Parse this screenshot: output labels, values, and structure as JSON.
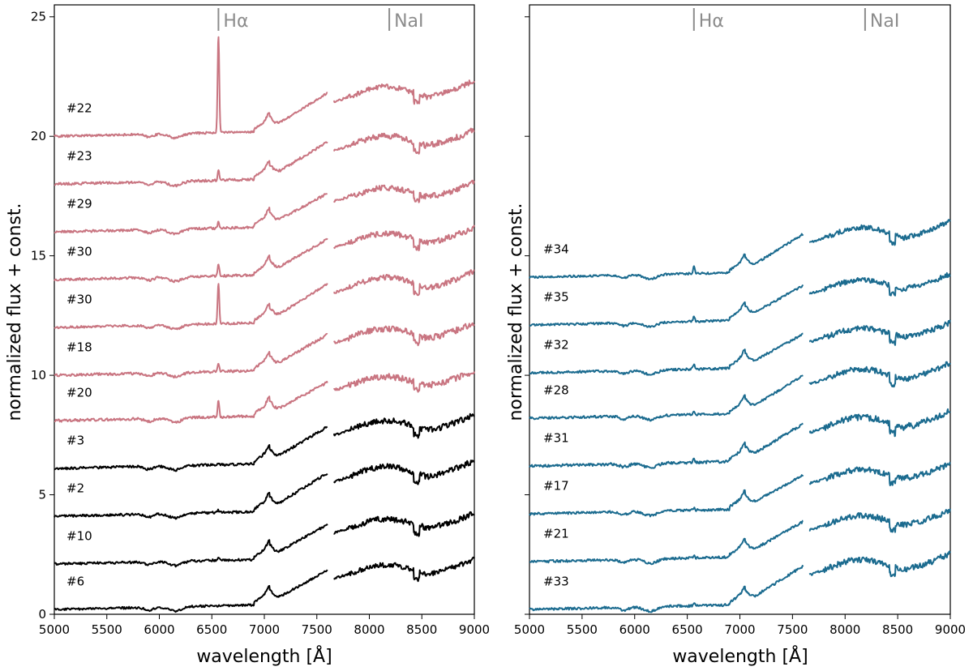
{
  "xlabel": "wavelength [Å]",
  "ylabel": "normalized flux + const.",
  "chart_data": [
    {
      "type": "line",
      "panel": "left",
      "xlim": [
        5000,
        9000
      ],
      "ylim": [
        0,
        25.5
      ],
      "xticks": [
        "5000",
        "5500",
        "6000",
        "6500",
        "7000",
        "7500",
        "8000",
        "8500",
        "9000"
      ],
      "yticks": [
        "0",
        "5",
        "10",
        "15",
        "20",
        "25"
      ],
      "annotations": [
        {
          "text": "Hα",
          "x": 6563
        },
        {
          "text": "NaI",
          "x": 8190
        }
      ],
      "series": [
        {
          "name": "#22",
          "offset": 20.0,
          "color": "#c97581",
          "halpha": 4.0
        },
        {
          "name": "#23",
          "offset": 18.0,
          "color": "#c97581",
          "halpha": 0.4
        },
        {
          "name": "#29",
          "offset": 16.0,
          "color": "#c97581",
          "halpha": 0.3
        },
        {
          "name": "#30",
          "offset": 14.0,
          "color": "#c97581",
          "halpha": 0.5
        },
        {
          "name": "#30",
          "offset": 12.0,
          "color": "#c97581",
          "halpha": 1.7
        },
        {
          "name": "#18",
          "offset": 10.0,
          "color": "#c97581",
          "halpha": 0.3
        },
        {
          "name": "#20",
          "offset": 8.1,
          "color": "#c97581",
          "halpha": 0.7
        },
        {
          "name": "#3",
          "offset": 6.1,
          "color": "#000000",
          "halpha": 0.1
        },
        {
          "name": "#2",
          "offset": 4.1,
          "color": "#000000",
          "halpha": 0.1
        },
        {
          "name": "#10",
          "offset": 2.1,
          "color": "#000000",
          "halpha": 0.1
        },
        {
          "name": "#6",
          "offset": 0.2,
          "color": "#000000",
          "halpha": 0.0
        }
      ]
    },
    {
      "type": "line",
      "panel": "right",
      "xlim": [
        5000,
        9000
      ],
      "ylim": [
        0,
        25.5
      ],
      "xticks": [
        "5000",
        "5500",
        "6000",
        "6500",
        "7000",
        "7500",
        "8000",
        "8500",
        "9000"
      ],
      "yticks": [],
      "annotations": [
        {
          "text": "Hα",
          "x": 6563
        },
        {
          "text": "NaI",
          "x": 8190
        }
      ],
      "series": [
        {
          "name": "#34",
          "offset": 14.1,
          "color": "#1b6b8f",
          "halpha": 0.3
        },
        {
          "name": "#35",
          "offset": 12.1,
          "color": "#1b6b8f",
          "halpha": 0.2
        },
        {
          "name": "#32",
          "offset": 10.1,
          "color": "#1b6b8f",
          "halpha": 0.2
        },
        {
          "name": "#28",
          "offset": 8.2,
          "color": "#1b6b8f",
          "halpha": 0.1
        },
        {
          "name": "#31",
          "offset": 6.2,
          "color": "#1b6b8f",
          "halpha": 0.2
        },
        {
          "name": "#17",
          "offset": 4.2,
          "color": "#1b6b8f",
          "halpha": 0.1
        },
        {
          "name": "#21",
          "offset": 2.2,
          "color": "#1b6b8f",
          "halpha": 0.1
        },
        {
          "name": "#33",
          "offset": 0.2,
          "color": "#1b6b8f",
          "halpha": 0.1
        }
      ]
    }
  ]
}
